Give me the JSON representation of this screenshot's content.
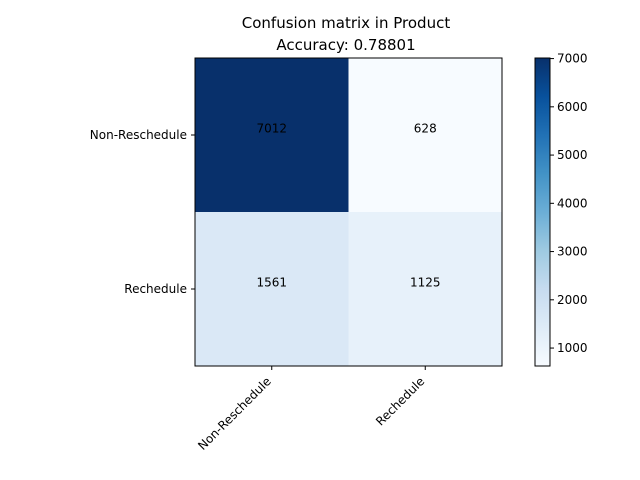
{
  "chart_data": {
    "type": "heatmap",
    "title": "Confusion matrix in Product",
    "subtitle": "Accuracy: 0.78801",
    "x_categories": [
      "Non-Reschedule",
      "Rechedule"
    ],
    "y_categories": [
      "Non-Reschedule",
      "Rechedule"
    ],
    "values": [
      [
        7012,
        628
      ],
      [
        1561,
        1125
      ]
    ],
    "colormap": "Blues",
    "colorbar": {
      "range": [
        628,
        7012
      ],
      "ticks": [
        1000,
        2000,
        3000,
        4000,
        5000,
        6000,
        7000
      ]
    },
    "xlabel": "",
    "ylabel": ""
  }
}
